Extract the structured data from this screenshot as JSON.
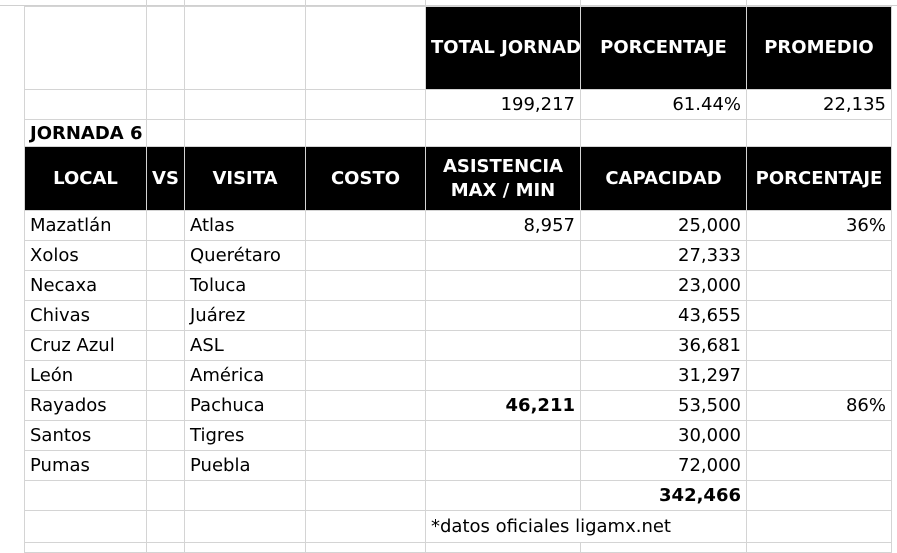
{
  "summary_header": {
    "total_jornada": "TOTAL JORNADA",
    "porcentaje": "PORCENTAJE",
    "promedio": "PROMEDIO"
  },
  "summary_values": {
    "total_jornada": "199,217",
    "porcentaje": "61.44%",
    "promedio": "22,135"
  },
  "jornada_label": "JORNADA 6",
  "columns": {
    "local": "LOCAL",
    "vs": "VS",
    "visita": "VISITA",
    "costo": "COSTO",
    "asistencia": "ASISTENCIA MAX / MIN",
    "capacidad": "CAPACIDAD",
    "porcentaje": "PORCENTAJE"
  },
  "rows": [
    {
      "local": "Mazatlán",
      "visita": "Atlas",
      "asistencia": "8,957",
      "capacidad": "25,000",
      "porcentaje": "36%"
    },
    {
      "local": "Xolos",
      "visita": "Querétaro",
      "asistencia": "",
      "capacidad": "27,333",
      "porcentaje": ""
    },
    {
      "local": "Necaxa",
      "visita": "Toluca",
      "asistencia": "",
      "capacidad": "23,000",
      "porcentaje": ""
    },
    {
      "local": "Chivas",
      "visita": "Juárez",
      "asistencia": "",
      "capacidad": "43,655",
      "porcentaje": ""
    },
    {
      "local": "Cruz Azul",
      "visita": "ASL",
      "asistencia": "",
      "capacidad": "36,681",
      "porcentaje": ""
    },
    {
      "local": "León",
      "visita": "América",
      "asistencia": "",
      "capacidad": "31,297",
      "porcentaje": ""
    },
    {
      "local": "Rayados",
      "visita": "Pachuca",
      "asistencia": "46,211",
      "capacidad": "53,500",
      "porcentaje": "86%"
    },
    {
      "local": "Santos",
      "visita": "Tigres",
      "asistencia": "",
      "capacidad": "30,000",
      "porcentaje": ""
    },
    {
      "local": "Pumas",
      "visita": "Puebla",
      "asistencia": "",
      "capacidad": "72,000",
      "porcentaje": ""
    }
  ],
  "total_capacidad": "342,466",
  "note": "*datos oficiales ligamx.net"
}
